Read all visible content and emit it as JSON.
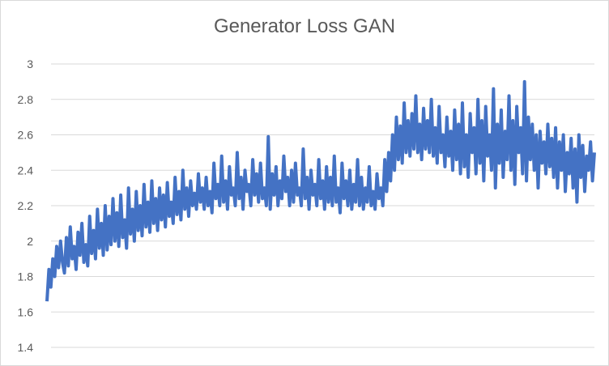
{
  "chart_data": {
    "type": "line",
    "title": "Generator Loss GAN",
    "xlabel": "",
    "ylabel": "",
    "ylim": [
      1.4,
      3.0
    ],
    "yticks": [
      "1.4",
      "1.6",
      "1.8",
      "2",
      "2.2",
      "2.4",
      "2.6",
      "2.8",
      "3"
    ],
    "grid": true,
    "legend": "none",
    "colors": {
      "series": "#4472c4",
      "grid": "#d9d9d9",
      "text": "#595959"
    },
    "series": [
      {
        "values": [
          1.66,
          1.84,
          1.74,
          1.9,
          1.8,
          1.97,
          1.85,
          2.0,
          1.88,
          1.82,
          2.02,
          1.86,
          2.08,
          1.9,
          1.97,
          1.84,
          2.05,
          1.92,
          2.1,
          1.88,
          1.98,
          1.86,
          2.14,
          1.93,
          2.06,
          1.9,
          2.18,
          1.96,
          2.1,
          1.92,
          2.2,
          1.95,
          2.14,
          1.98,
          2.24,
          2.0,
          2.16,
          1.97,
          2.26,
          2.02,
          2.12,
          1.96,
          2.3,
          2.04,
          2.18,
          2.0,
          2.28,
          2.06,
          2.2,
          2.03,
          2.32,
          2.08,
          2.22,
          2.05,
          2.34,
          2.1,
          2.24,
          2.06,
          2.3,
          2.12,
          2.26,
          2.08,
          2.33,
          2.14,
          2.22,
          2.1,
          2.36,
          2.15,
          2.28,
          2.12,
          2.4,
          2.18,
          2.3,
          2.14,
          2.34,
          2.2,
          2.27,
          2.18,
          2.38,
          2.22,
          2.3,
          2.18,
          2.36,
          2.2,
          2.28,
          2.16,
          2.44,
          2.24,
          2.32,
          2.2,
          2.48,
          2.22,
          2.34,
          2.18,
          2.42,
          2.26,
          2.3,
          2.2,
          2.5,
          2.24,
          2.36,
          2.18,
          2.4,
          2.28,
          2.32,
          2.2,
          2.46,
          2.26,
          2.38,
          2.22,
          2.44,
          2.24,
          2.3,
          2.2,
          2.59,
          2.18,
          2.38,
          2.26,
          2.42,
          2.2,
          2.34,
          2.24,
          2.48,
          2.28,
          2.36,
          2.2,
          2.4,
          2.22,
          2.44,
          2.26,
          2.3,
          2.2,
          2.52,
          2.24,
          2.36,
          2.18,
          2.4,
          2.26,
          2.32,
          2.2,
          2.46,
          2.24,
          2.34,
          2.18,
          2.42,
          2.22,
          2.36,
          2.2,
          2.48,
          2.22,
          2.3,
          2.16,
          2.44,
          2.24,
          2.34,
          2.2,
          2.4,
          2.18,
          2.32,
          2.22,
          2.46,
          2.2,
          2.36,
          2.18,
          2.3,
          2.22,
          2.42,
          2.2,
          2.28,
          2.18,
          2.38,
          2.24,
          2.3,
          2.2,
          2.46,
          2.28,
          2.5,
          2.34,
          2.6,
          2.4,
          2.7,
          2.46,
          2.65,
          2.44,
          2.78,
          2.5,
          2.68,
          2.48,
          2.72,
          2.52,
          2.82,
          2.5,
          2.66,
          2.46,
          2.75,
          2.52,
          2.68,
          2.5,
          2.8,
          2.48,
          2.64,
          2.44,
          2.76,
          2.5,
          2.6,
          2.42,
          2.7,
          2.48,
          2.62,
          2.4,
          2.74,
          2.46,
          2.66,
          2.38,
          2.78,
          2.42,
          2.6,
          2.36,
          2.72,
          2.5,
          2.64,
          2.38,
          2.8,
          2.44,
          2.68,
          2.34,
          2.76,
          2.48,
          2.6,
          2.4,
          2.86,
          2.3,
          2.66,
          2.44,
          2.74,
          2.36,
          2.62,
          2.46,
          2.82,
          2.4,
          2.68,
          2.32,
          2.76,
          2.5,
          2.64,
          2.38,
          2.9,
          2.34,
          2.7,
          2.46,
          2.66,
          2.4,
          2.6,
          2.3,
          2.62,
          2.44,
          2.56,
          2.38,
          2.66,
          2.42,
          2.58,
          2.36,
          2.64,
          2.3,
          2.56,
          2.4,
          2.6,
          2.28,
          2.5,
          2.38,
          2.58,
          2.3,
          2.52,
          2.22,
          2.6,
          2.36,
          2.54,
          2.28,
          2.48,
          2.4,
          2.56,
          2.34,
          2.5
        ]
      }
    ]
  }
}
